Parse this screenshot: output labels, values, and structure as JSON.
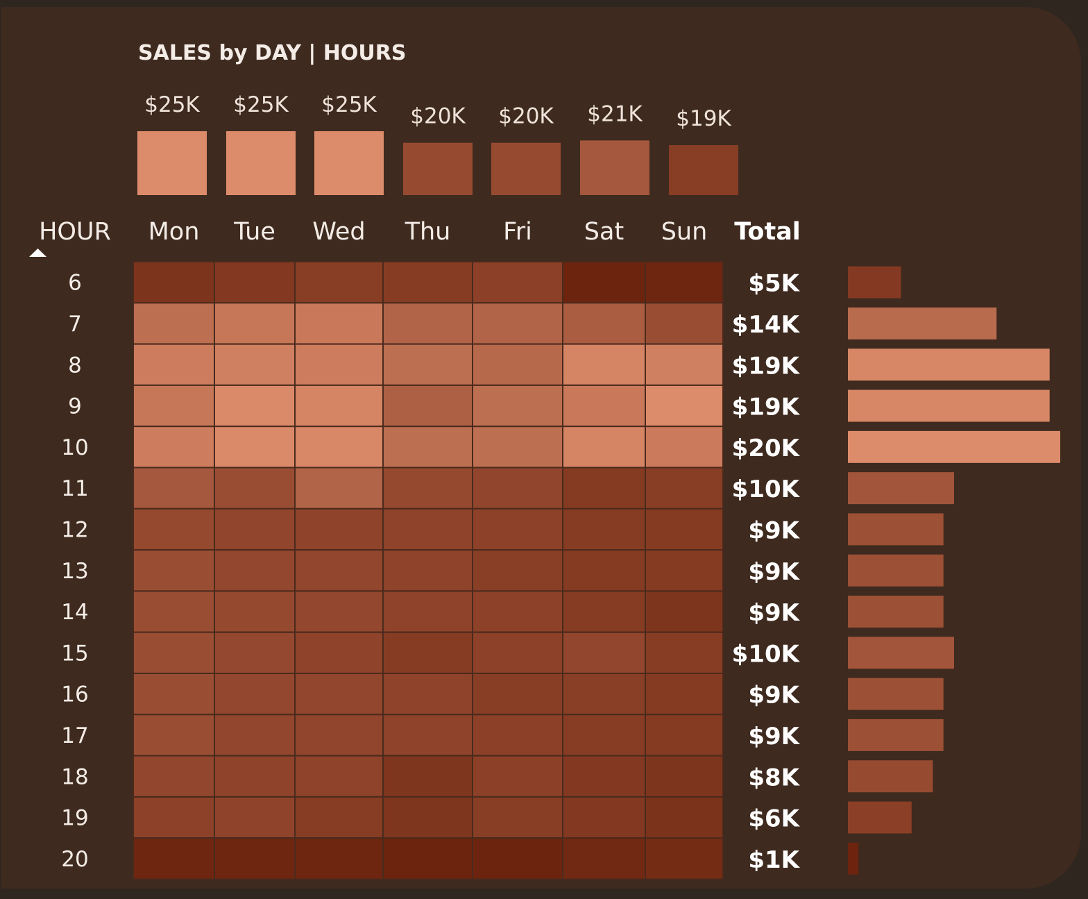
{
  "chart_data": {
    "type": "heatmap",
    "title": "SALES by DAY | HOURS",
    "row_header": "HOUR",
    "total_header": "Total",
    "days": [
      "Mon",
      "Tue",
      "Wed",
      "Thu",
      "Fri",
      "Sat",
      "Sun"
    ],
    "day_totals": [
      25,
      25,
      25,
      20,
      20,
      21,
      19
    ],
    "day_total_labels": [
      "$25K",
      "$25K",
      "$25K",
      "$20K",
      "$20K",
      "$21K",
      "$19K"
    ],
    "hours": [
      "6",
      "7",
      "8",
      "9",
      "10",
      "11",
      "12",
      "13",
      "14",
      "15",
      "16",
      "17",
      "18",
      "19",
      "20"
    ],
    "hour_totals": [
      5,
      14,
      19,
      19,
      20,
      10,
      9,
      9,
      9,
      10,
      9,
      9,
      8,
      6,
      1
    ],
    "hour_total_labels": [
      "$5K",
      "$14K",
      "$19K",
      "$19K",
      "$20K",
      "$10K",
      "$9K",
      "$9K",
      "$9K",
      "$10K",
      "$9K",
      "$9K",
      "$8K",
      "$6K",
      "$1K"
    ],
    "cell_intensity": [
      [
        0.15,
        0.2,
        0.25,
        0.23,
        0.27,
        0.0,
        0.02
      ],
      [
        0.72,
        0.8,
        0.82,
        0.62,
        0.62,
        0.55,
        0.4
      ],
      [
        0.86,
        0.88,
        0.86,
        0.72,
        0.66,
        0.93,
        0.88
      ],
      [
        0.8,
        0.98,
        0.93,
        0.58,
        0.72,
        0.82,
        1.0
      ],
      [
        0.86,
        0.98,
        0.96,
        0.72,
        0.72,
        0.93,
        0.84
      ],
      [
        0.5,
        0.4,
        0.62,
        0.36,
        0.32,
        0.22,
        0.25
      ],
      [
        0.36,
        0.32,
        0.3,
        0.3,
        0.28,
        0.23,
        0.22
      ],
      [
        0.4,
        0.34,
        0.33,
        0.3,
        0.26,
        0.22,
        0.22
      ],
      [
        0.4,
        0.36,
        0.34,
        0.3,
        0.28,
        0.23,
        0.16
      ],
      [
        0.4,
        0.35,
        0.3,
        0.23,
        0.28,
        0.33,
        0.24
      ],
      [
        0.4,
        0.34,
        0.33,
        0.3,
        0.25,
        0.26,
        0.22
      ],
      [
        0.4,
        0.33,
        0.32,
        0.3,
        0.27,
        0.24,
        0.22
      ],
      [
        0.33,
        0.3,
        0.3,
        0.17,
        0.27,
        0.2,
        0.16
      ],
      [
        0.28,
        0.3,
        0.24,
        0.17,
        0.25,
        0.2,
        0.14
      ],
      [
        0.02,
        0.02,
        0.02,
        0.0,
        0.0,
        0.05,
        0.08
      ]
    ],
    "color_low": "#6c240e",
    "color_high": "#dd8c6b"
  }
}
